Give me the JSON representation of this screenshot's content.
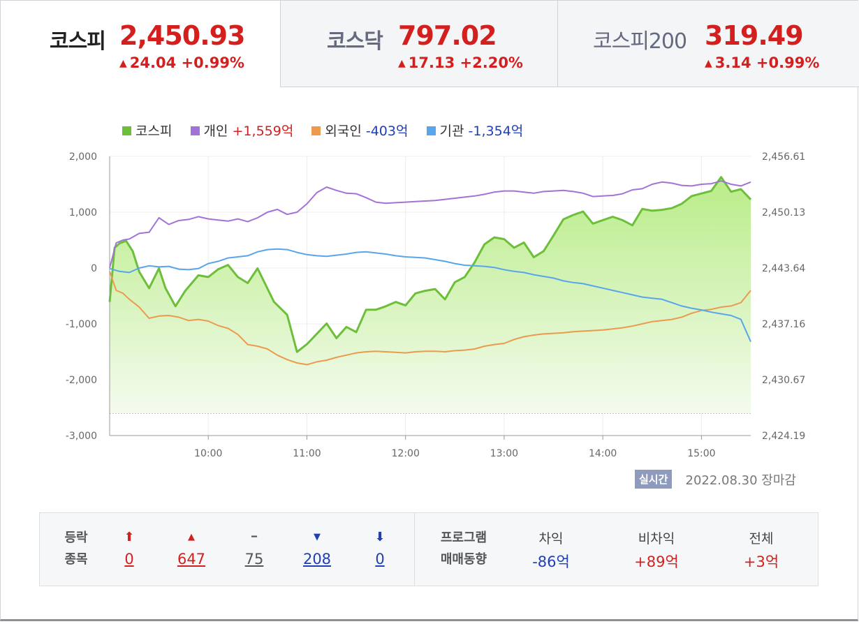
{
  "tabs": [
    {
      "name": "코스피",
      "value": "2,450.93",
      "arrow": "▲",
      "change": "24.04 +0.99%"
    },
    {
      "name": "코스닥",
      "value": "797.02",
      "arrow": "▲",
      "change": "17.13 +2.20%"
    },
    {
      "name": "코스피200",
      "value": "319.49",
      "arrow": "▲",
      "change": "3.14 +0.99%"
    }
  ],
  "legend": [
    {
      "name": "코스피",
      "value": "",
      "color": "#6dbf3a"
    },
    {
      "name": "개인",
      "value": "+1,559억",
      "color": "#a173d6"
    },
    {
      "name": "외국인",
      "value": "-403억",
      "color": "#eb9a4e"
    },
    {
      "name": "기관",
      "value": "-1,354억",
      "color": "#58a5ec"
    }
  ],
  "status": {
    "badge": "실시간",
    "date": "2022.08.30 장마감"
  },
  "updown": {
    "label_line1": "등락",
    "label_line2": "종목",
    "items": [
      {
        "symbol": "⬆",
        "count": "0",
        "color": "#d41f1f"
      },
      {
        "symbol": "▲",
        "count": "647",
        "color": "#d41f1f"
      },
      {
        "symbol": "━",
        "count": "75",
        "color": "#555555"
      },
      {
        "symbol": "▼",
        "count": "208",
        "color": "#1f3fb8"
      },
      {
        "symbol": "⬇",
        "count": "0",
        "color": "#1f3fb8"
      }
    ]
  },
  "program": {
    "label_line1": "프로그램",
    "label_line2": "매매동향",
    "items": [
      {
        "header": "차익",
        "value": "-86억",
        "color": "#1f3fb8"
      },
      {
        "header": "비차익",
        "value": "+89억",
        "color": "#d41f1f"
      },
      {
        "header": "전체",
        "value": "+3억",
        "color": "#d41f1f"
      }
    ]
  },
  "chart_data": {
    "type": "line",
    "title": "",
    "y_left": {
      "ticks": [
        "2,000",
        "1,000",
        "0",
        "-1,000",
        "-2,000",
        "-3,000"
      ],
      "range": [
        -3000,
        2000
      ]
    },
    "y_right": {
      "ticks": [
        "2,456.61",
        "2,450.13",
        "2,443.64",
        "2,437.16",
        "2,430.67",
        "2,424.19"
      ],
      "range": [
        2424.19,
        2456.61
      ]
    },
    "x_ticks": [
      "10:00",
      "11:00",
      "12:00",
      "13:00",
      "14:00",
      "15:00"
    ],
    "x_range_minutes": [
      540,
      930
    ],
    "x_tick_minutes": [
      600,
      660,
      720,
      780,
      840,
      900
    ],
    "baseline_left": -2600,
    "colors": {
      "kospi": "#6dbf3a",
      "individual": "#a173d6",
      "foreign": "#eb9a4e",
      "institution": "#58a5ec"
    },
    "series": [
      {
        "name": "코스피",
        "key": "kospi",
        "axis": "right",
        "area": true,
        "x": [
          540,
          543,
          546,
          550,
          554,
          558,
          564,
          570,
          574,
          580,
          586,
          594,
          600,
          606,
          612,
          618,
          624,
          630,
          640,
          648,
          654,
          660,
          666,
          672,
          678,
          684,
          690,
          696,
          702,
          708,
          714,
          720,
          726,
          732,
          738,
          744,
          750,
          756,
          762,
          768,
          774,
          780,
          786,
          792,
          798,
          804,
          810,
          816,
          822,
          828,
          834,
          840,
          846,
          852,
          858,
          864,
          870,
          876,
          882,
          888,
          894,
          900,
          906,
          912,
          918,
          924,
          930
        ],
        "y": [
          2439.7,
          2446.0,
          2446.5,
          2446.8,
          2445.6,
          2443.2,
          2441.3,
          2443.6,
          2441.3,
          2439.2,
          2441.0,
          2442.8,
          2442.6,
          2443.5,
          2444.0,
          2442.6,
          2441.9,
          2443.6,
          2439.7,
          2438.2,
          2433.9,
          2434.8,
          2436.0,
          2437.2,
          2435.5,
          2436.8,
          2436.2,
          2438.8,
          2438.8,
          2439.2,
          2439.7,
          2439.3,
          2440.7,
          2441.0,
          2441.2,
          2440.0,
          2442.0,
          2442.6,
          2444.3,
          2446.4,
          2447.2,
          2447.0,
          2446.0,
          2446.6,
          2444.9,
          2445.6,
          2447.4,
          2449.3,
          2449.8,
          2450.2,
          2448.8,
          2449.2,
          2449.6,
          2449.2,
          2448.6,
          2450.5,
          2450.3,
          2450.4,
          2450.6,
          2451.1,
          2452.0,
          2452.3,
          2452.6,
          2454.2,
          2452.5,
          2452.8,
          2451.6
        ]
      },
      {
        "name": "개인",
        "key": "individual",
        "axis": "left",
        "x": [
          540,
          544,
          548,
          552,
          558,
          564,
          570,
          576,
          582,
          588,
          594,
          600,
          606,
          612,
          618,
          624,
          630,
          636,
          642,
          648,
          654,
          660,
          666,
          672,
          678,
          684,
          690,
          696,
          702,
          708,
          714,
          720,
          726,
          732,
          738,
          744,
          750,
          756,
          762,
          768,
          774,
          780,
          786,
          792,
          798,
          804,
          810,
          816,
          822,
          828,
          834,
          840,
          846,
          852,
          858,
          864,
          870,
          876,
          882,
          888,
          894,
          900,
          906,
          912,
          918,
          924,
          930
        ],
        "y": [
          0,
          450,
          500,
          520,
          620,
          640,
          900,
          780,
          850,
          870,
          920,
          880,
          860,
          840,
          880,
          830,
          900,
          1000,
          1050,
          960,
          1000,
          1150,
          1350,
          1450,
          1390,
          1340,
          1330,
          1260,
          1180,
          1160,
          1170,
          1180,
          1190,
          1200,
          1210,
          1230,
          1250,
          1270,
          1290,
          1320,
          1360,
          1380,
          1380,
          1360,
          1340,
          1370,
          1380,
          1390,
          1370,
          1340,
          1280,
          1290,
          1300,
          1330,
          1400,
          1420,
          1500,
          1540,
          1520,
          1480,
          1470,
          1500,
          1510,
          1560,
          1500,
          1470,
          1540
        ]
      },
      {
        "name": "외국인",
        "key": "foreign",
        "axis": "left",
        "x": [
          540,
          544,
          548,
          552,
          558,
          564,
          570,
          576,
          582,
          588,
          594,
          600,
          606,
          612,
          618,
          624,
          630,
          636,
          642,
          648,
          654,
          660,
          666,
          672,
          678,
          684,
          690,
          696,
          702,
          708,
          714,
          720,
          726,
          732,
          738,
          744,
          750,
          756,
          762,
          768,
          774,
          780,
          786,
          792,
          798,
          804,
          810,
          816,
          822,
          828,
          834,
          840,
          846,
          852,
          858,
          864,
          870,
          876,
          882,
          888,
          894,
          900,
          906,
          912,
          918,
          924,
          930
        ],
        "y": [
          -60,
          -400,
          -450,
          -560,
          -700,
          -900,
          -860,
          -850,
          -880,
          -940,
          -920,
          -950,
          -1030,
          -1080,
          -1190,
          -1370,
          -1400,
          -1450,
          -1560,
          -1640,
          -1700,
          -1730,
          -1680,
          -1650,
          -1600,
          -1560,
          -1520,
          -1500,
          -1490,
          -1500,
          -1510,
          -1520,
          -1500,
          -1490,
          -1490,
          -1500,
          -1480,
          -1470,
          -1450,
          -1400,
          -1370,
          -1350,
          -1280,
          -1230,
          -1200,
          -1180,
          -1170,
          -1160,
          -1140,
          -1130,
          -1120,
          -1110,
          -1090,
          -1070,
          -1040,
          -1000,
          -960,
          -940,
          -920,
          -880,
          -810,
          -760,
          -740,
          -700,
          -680,
          -620,
          -400
        ]
      },
      {
        "name": "기관",
        "key": "institution",
        "axis": "left",
        "x": [
          540,
          546,
          552,
          558,
          564,
          570,
          576,
          582,
          588,
          594,
          600,
          606,
          612,
          618,
          624,
          630,
          636,
          642,
          648,
          654,
          660,
          666,
          672,
          678,
          684,
          690,
          696,
          702,
          708,
          714,
          720,
          726,
          732,
          738,
          744,
          750,
          756,
          762,
          768,
          774,
          780,
          786,
          792,
          798,
          804,
          810,
          816,
          822,
          828,
          834,
          840,
          846,
          852,
          858,
          864,
          870,
          876,
          882,
          888,
          894,
          900,
          906,
          912,
          918,
          924,
          930
        ],
        "y": [
          -10,
          -60,
          -80,
          0,
          40,
          20,
          30,
          -20,
          -30,
          -10,
          80,
          120,
          180,
          200,
          220,
          290,
          330,
          340,
          330,
          280,
          240,
          220,
          210,
          230,
          250,
          280,
          290,
          270,
          250,
          220,
          200,
          190,
          180,
          150,
          120,
          80,
          50,
          40,
          30,
          10,
          -30,
          -60,
          -80,
          -120,
          -150,
          -180,
          -230,
          -260,
          -280,
          -320,
          -360,
          -400,
          -440,
          -480,
          -520,
          -540,
          -560,
          -620,
          -680,
          -720,
          -750,
          -790,
          -820,
          -850,
          -920,
          -1320
        ]
      }
    ]
  }
}
